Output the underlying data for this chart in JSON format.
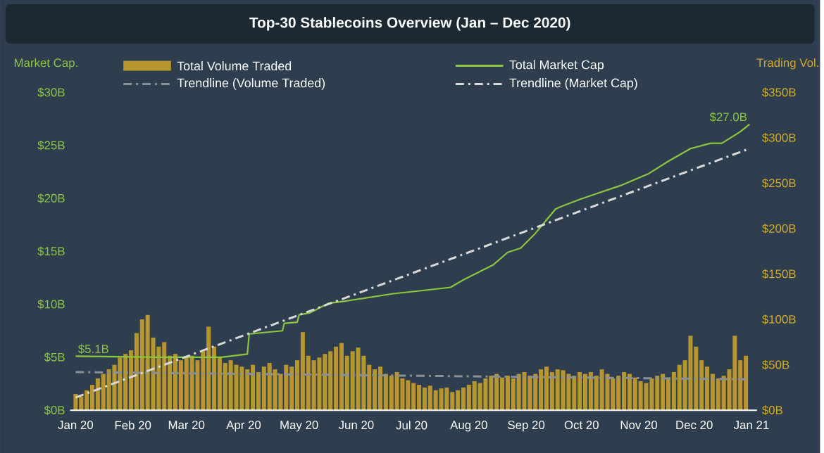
{
  "chart_data": {
    "type": "bar",
    "title": "Top-30 Stablecoins Overview (Jan – Dec 2020)",
    "ylabel": "Market Cap.",
    "y2label": "Trading Vol.",
    "legend": "top",
    "xlim": [
      "2019-12-29",
      "2021-01-04"
    ],
    "xticks": [
      {
        "value": "2020-01-01",
        "label": "Jan 20"
      },
      {
        "value": "2020-02-01",
        "label": "Feb 20"
      },
      {
        "value": "2020-03-01",
        "label": "Mar 20"
      },
      {
        "value": "2020-04-01",
        "label": "Apr 20"
      },
      {
        "value": "2020-05-01",
        "label": "May 20"
      },
      {
        "value": "2020-06-01",
        "label": "Jun 20"
      },
      {
        "value": "2020-07-01",
        "label": "Jul 20"
      },
      {
        "value": "2020-08-01",
        "label": "Aug 20"
      },
      {
        "value": "2020-09-01",
        "label": "Sep 20"
      },
      {
        "value": "2020-10-01",
        "label": "Oct 20"
      },
      {
        "value": "2020-11-01",
        "label": "Nov 20"
      },
      {
        "value": "2020-12-01",
        "label": "Dec 20"
      },
      {
        "value": "2021-01-01",
        "label": "Jan 21"
      }
    ],
    "ylim": [
      0,
      30
    ],
    "yticks": [
      {
        "value": 0,
        "label": "$0B"
      },
      {
        "value": 5,
        "label": "$5B"
      },
      {
        "value": 10,
        "label": "$10B"
      },
      {
        "value": 15,
        "label": "$15B"
      },
      {
        "value": 20,
        "label": "$20B"
      },
      {
        "value": 25,
        "label": "$25B"
      },
      {
        "value": 30,
        "label": "$30B"
      }
    ],
    "y2lim": [
      0,
      350
    ],
    "y2ticks": [
      {
        "value": 0,
        "label": "$0B"
      },
      {
        "value": 50,
        "label": "$50B"
      },
      {
        "value": 100,
        "label": "$100B"
      },
      {
        "value": 150,
        "label": "$150B"
      },
      {
        "value": 200,
        "label": "$200B"
      },
      {
        "value": 250,
        "label": "$250B"
      },
      {
        "value": 300,
        "label": "$300B"
      },
      {
        "value": 350,
        "label": "$350B"
      }
    ],
    "annotations": [
      {
        "text": "$5.1B",
        "x": "2020-01-01",
        "y": 5.1
      },
      {
        "text": "$27.0B",
        "x": "2020-12-31",
        "y": 27.0
      }
    ],
    "series": [
      {
        "name": "Total Volume Traded",
        "axis": "y2",
        "color": "#b8962e",
        "x": [
          "2020-01-01",
          "2020-01-04",
          "2020-01-07",
          "2020-01-10",
          "2020-01-13",
          "2020-01-16",
          "2020-01-19",
          "2020-01-22",
          "2020-01-25",
          "2020-01-28",
          "2020-01-31",
          "2020-02-03",
          "2020-02-06",
          "2020-02-09",
          "2020-02-12",
          "2020-02-15",
          "2020-02-18",
          "2020-02-21",
          "2020-02-24",
          "2020-02-27",
          "2020-03-01",
          "2020-03-04",
          "2020-03-07",
          "2020-03-10",
          "2020-03-13",
          "2020-03-16",
          "2020-03-19",
          "2020-03-22",
          "2020-03-25",
          "2020-03-28",
          "2020-03-31",
          "2020-04-03",
          "2020-04-06",
          "2020-04-09",
          "2020-04-12",
          "2020-04-15",
          "2020-04-18",
          "2020-04-21",
          "2020-04-24",
          "2020-04-27",
          "2020-04-30",
          "2020-05-03",
          "2020-05-06",
          "2020-05-09",
          "2020-05-12",
          "2020-05-15",
          "2020-05-18",
          "2020-05-21",
          "2020-05-24",
          "2020-05-27",
          "2020-05-30",
          "2020-06-02",
          "2020-06-05",
          "2020-06-08",
          "2020-06-11",
          "2020-06-14",
          "2020-06-17",
          "2020-06-20",
          "2020-06-23",
          "2020-06-26",
          "2020-06-29",
          "2020-07-02",
          "2020-07-05",
          "2020-07-08",
          "2020-07-11",
          "2020-07-14",
          "2020-07-17",
          "2020-07-20",
          "2020-07-23",
          "2020-07-26",
          "2020-07-29",
          "2020-08-01",
          "2020-08-04",
          "2020-08-07",
          "2020-08-10",
          "2020-08-13",
          "2020-08-16",
          "2020-08-19",
          "2020-08-22",
          "2020-08-25",
          "2020-08-28",
          "2020-08-31",
          "2020-09-03",
          "2020-09-06",
          "2020-09-09",
          "2020-09-12",
          "2020-09-15",
          "2020-09-18",
          "2020-09-21",
          "2020-09-24",
          "2020-09-27",
          "2020-09-30",
          "2020-10-03",
          "2020-10-06",
          "2020-10-09",
          "2020-10-12",
          "2020-10-15",
          "2020-10-18",
          "2020-10-21",
          "2020-10-24",
          "2020-10-27",
          "2020-10-30",
          "2020-11-02",
          "2020-11-05",
          "2020-11-08",
          "2020-11-11",
          "2020-11-14",
          "2020-11-17",
          "2020-11-20",
          "2020-11-23",
          "2020-11-26",
          "2020-11-29",
          "2020-12-02",
          "2020-12-05",
          "2020-12-08",
          "2020-12-11",
          "2020-12-14",
          "2020-12-17",
          "2020-12-20",
          "2020-12-23",
          "2020-12-26",
          "2020-12-29"
        ],
        "values": [
          18,
          15,
          22,
          28,
          35,
          40,
          45,
          50,
          58,
          62,
          66,
          85,
          100,
          105,
          80,
          70,
          75,
          60,
          62,
          55,
          58,
          60,
          55,
          65,
          92,
          70,
          58,
          52,
          55,
          50,
          48,
          45,
          50,
          42,
          48,
          52,
          45,
          40,
          50,
          48,
          55,
          86,
          60,
          55,
          58,
          62,
          65,
          70,
          74,
          60,
          65,
          69,
          60,
          50,
          45,
          48,
          40,
          38,
          42,
          35,
          33,
          30,
          28,
          25,
          27,
          22,
          24,
          25,
          20,
          22,
          25,
          28,
          32,
          30,
          35,
          38,
          40,
          36,
          38,
          35,
          40,
          42,
          38,
          40,
          45,
          48,
          42,
          45,
          44,
          40,
          38,
          42,
          40,
          42,
          38,
          45,
          40,
          35,
          38,
          42,
          40,
          36,
          32,
          30,
          35,
          38,
          40,
          36,
          42,
          50,
          55,
          82,
          70,
          55,
          48,
          40,
          35,
          38,
          45,
          82,
          55,
          60
        ]
      },
      {
        "name": "Total Market Cap",
        "type": "line",
        "color": "#8dc63f",
        "line_style": "solid",
        "x": [
          "2020-01-01",
          "2020-02-15",
          "2020-03-20",
          "2020-04-03",
          "2020-04-04",
          "2020-04-16",
          "2020-04-22",
          "2020-04-23",
          "2020-04-30",
          "2020-05-01",
          "2020-05-07",
          "2020-05-17",
          "2020-05-26",
          "2020-06-21",
          "2020-07-07",
          "2020-07-22",
          "2020-07-30",
          "2020-08-14",
          "2020-08-22",
          "2020-08-29",
          "2020-09-06",
          "2020-09-17",
          "2020-09-21",
          "2020-09-30",
          "2020-10-10",
          "2020-10-22",
          "2020-11-06",
          "2020-11-17",
          "2020-11-29",
          "2020-12-10",
          "2020-12-16",
          "2020-12-26",
          "2020-12-31"
        ],
        "values": [
          5.1,
          5.0,
          5.0,
          5.3,
          7.2,
          7.4,
          7.5,
          8.2,
          8.3,
          9.0,
          9.2,
          10.1,
          10.3,
          11.0,
          11.3,
          11.6,
          12.4,
          13.7,
          14.9,
          15.3,
          16.7,
          19.0,
          19.3,
          19.9,
          20.5,
          21.2,
          22.3,
          23.5,
          24.7,
          25.2,
          25.2,
          26.3,
          27.0
        ]
      },
      {
        "name": "Trendline (Volume Traded)",
        "type": "line",
        "axis": "y2",
        "color": "#8a9098",
        "line_style": "dashdot",
        "x": [
          "2020-01-01",
          "2020-12-31"
        ],
        "values": [
          42,
          34
        ]
      },
      {
        "name": "Trendline (Market Cap)",
        "type": "line",
        "color": "#d9d9d9",
        "line_style": "dashdot",
        "x": [
          "2020-01-01",
          "2020-12-31"
        ],
        "values": [
          1.2,
          24.7
        ]
      }
    ]
  }
}
